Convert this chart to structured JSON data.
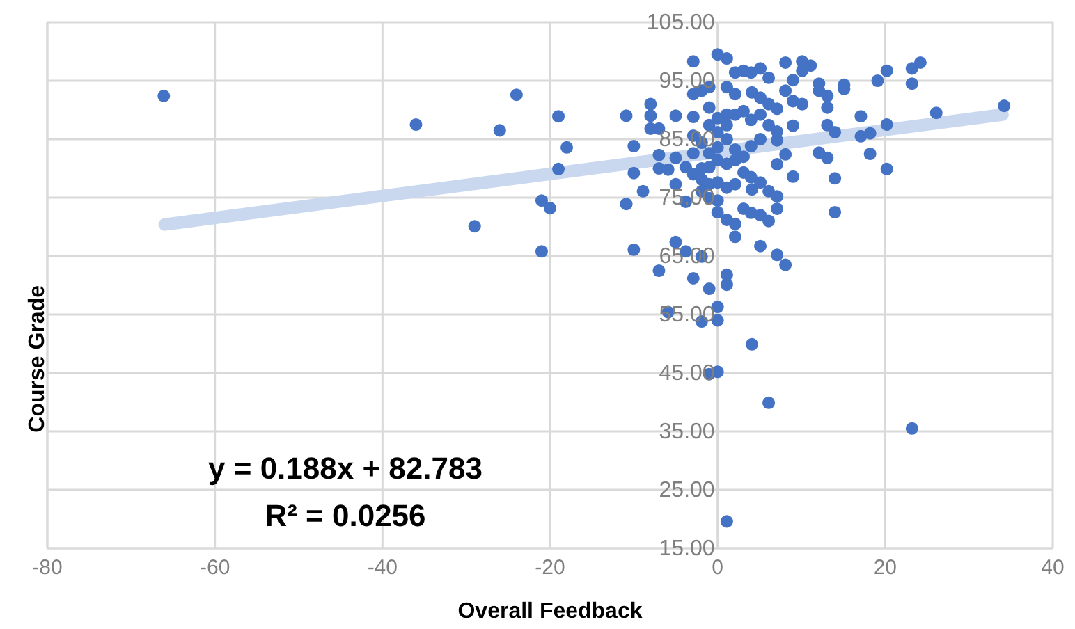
{
  "chart_data": {
    "type": "scatter",
    "xlabel": "Overall Feedback",
    "ylabel": "Course Grade",
    "xlim": [
      -80,
      40
    ],
    "xticks": [
      -80,
      -60,
      -40,
      -20,
      0,
      20,
      40
    ],
    "ylim": [
      15,
      105
    ],
    "yticks": [
      {
        "value": 15,
        "label": "15.00"
      },
      {
        "value": 25,
        "label": "25.00"
      },
      {
        "value": 35,
        "label": "35.00"
      },
      {
        "value": 45,
        "label": "45.00"
      },
      {
        "value": 55,
        "label": "55.00"
      },
      {
        "value": 65,
        "label": "65.00"
      },
      {
        "value": 75,
        "label": "75.00"
      },
      {
        "value": 85,
        "label": "85.00"
      },
      {
        "value": 95,
        "label": "95.00"
      },
      {
        "value": 105,
        "label": "105.00"
      }
    ],
    "grid": true,
    "marker": "circle",
    "annotations": [
      "y = 0.188x + 82.783",
      "R² = 0.0256"
    ],
    "series": [
      {
        "type": "line",
        "marker": "none",
        "color": "#c9d8ef",
        "x": [
          -66,
          34
        ],
        "values": [
          70.4,
          89.2
        ]
      },
      {
        "color": "#4472c4",
        "x": [
          -66.1,
          -36,
          -26,
          -24,
          -29,
          -21,
          -20,
          -21,
          -19,
          -18,
          -19,
          -10.9,
          -10,
          -10,
          -10.9,
          -10,
          -8,
          -8,
          -8,
          -7,
          -8.9,
          -7,
          -7,
          -5.9,
          -5,
          -5,
          -5,
          -5,
          -7,
          -5.9,
          -3.8,
          -3.8,
          -2.9,
          -2.9,
          -2.9,
          -1.9,
          -1.9,
          -1,
          -1,
          0,
          0,
          0,
          1.1,
          1.1,
          1.1,
          4.1,
          6.1,
          23.2,
          2.1,
          5.1,
          7.1,
          8.1,
          3.1,
          4,
          5.1,
          6.1,
          7.1,
          1.1,
          2.1,
          0,
          14,
          14,
          20.2,
          18.2,
          13.1,
          12.1,
          17.1,
          18.2,
          20.2,
          14,
          13.1,
          17.1,
          26.1,
          34.2,
          19.1,
          20.2,
          23.2,
          23.2,
          24.2,
          15.1,
          15.1,
          13.1,
          13.1,
          12.1,
          12.1,
          11.1,
          10.1,
          8.1,
          10.1,
          9,
          10.1,
          9,
          8.1,
          9,
          9,
          8.1,
          7.1,
          7.1,
          7.1,
          6.1,
          5.1,
          4,
          3.1,
          2.1,
          1.1,
          0,
          1.1,
          2.1,
          4.1,
          5.1,
          6.1,
          3.1,
          4,
          5.1,
          6.1,
          7.1,
          5.1,
          4,
          3.1,
          2.1,
          1.1,
          0,
          -1,
          -1,
          -1,
          -1.9,
          -2.9,
          -2.9,
          -2.9,
          -1.9,
          -1,
          0,
          1.1,
          2.1,
          0,
          1.1,
          2.1,
          1.1,
          0,
          -1,
          -2.9,
          -1.9,
          -1,
          0,
          1.1,
          2.1,
          3.1,
          4,
          5.1,
          6.1,
          7.1,
          4.1,
          -1.9,
          -1,
          0,
          -3.8,
          -1.9
        ],
        "values": [
          92.4,
          87.5,
          86.5,
          92.6,
          70.1,
          74.5,
          73.2,
          65.8,
          88.9,
          83.6,
          79.9,
          89,
          83.8,
          79.2,
          73.9,
          66.1,
          91,
          89,
          86.8,
          86.8,
          76.1,
          82.3,
          80,
          79.8,
          89,
          81.8,
          77.3,
          67.4,
          62.5,
          55.4,
          74.3,
          65.8,
          98.3,
          92.7,
          61.2,
          64.9,
          53.8,
          59.4,
          44.8,
          45.2,
          54,
          56.3,
          60.1,
          61.8,
          19.6,
          49.9,
          39.9,
          35.5,
          68.3,
          66.7,
          65.2,
          63.5,
          73.1,
          72.4,
          72,
          71,
          73.1,
          71.2,
          70.5,
          72.5,
          72.5,
          78.3,
          79.9,
          82.5,
          81.8,
          82.7,
          85.5,
          86,
          87.5,
          86.2,
          87.4,
          88.9,
          89.5,
          90.7,
          95,
          96.7,
          94.5,
          97.1,
          98.1,
          94.3,
          93.6,
          92.4,
          90.4,
          94.5,
          93.3,
          97.6,
          98.3,
          98.1,
          96.7,
          95.1,
          91,
          91.5,
          93.3,
          87.3,
          78.6,
          82.4,
          80.7,
          84.8,
          90.2,
          95.5,
          97.1,
          96.4,
          96.7,
          96.4,
          98.8,
          99.5,
          93.9,
          92.7,
          93,
          92.1,
          91,
          89.8,
          88.3,
          89.2,
          87.4,
          86.3,
          85,
          83.8,
          82,
          83.2,
          85,
          86.2,
          87.4,
          90.4,
          93.9,
          93.3,
          88.8,
          85.6,
          82.6,
          84.4,
          82.6,
          81.4,
          80.8,
          81.4,
          83.6,
          87.4,
          89.2,
          89.2,
          88.6,
          80.2,
          79,
          78.1,
          77.3,
          77.6,
          76.7,
          77.3,
          79.3,
          78.5,
          77.6,
          76.1,
          75.2,
          76.4,
          76.1,
          74.9,
          74.5,
          80.2,
          80
        ]
      }
    ]
  }
}
